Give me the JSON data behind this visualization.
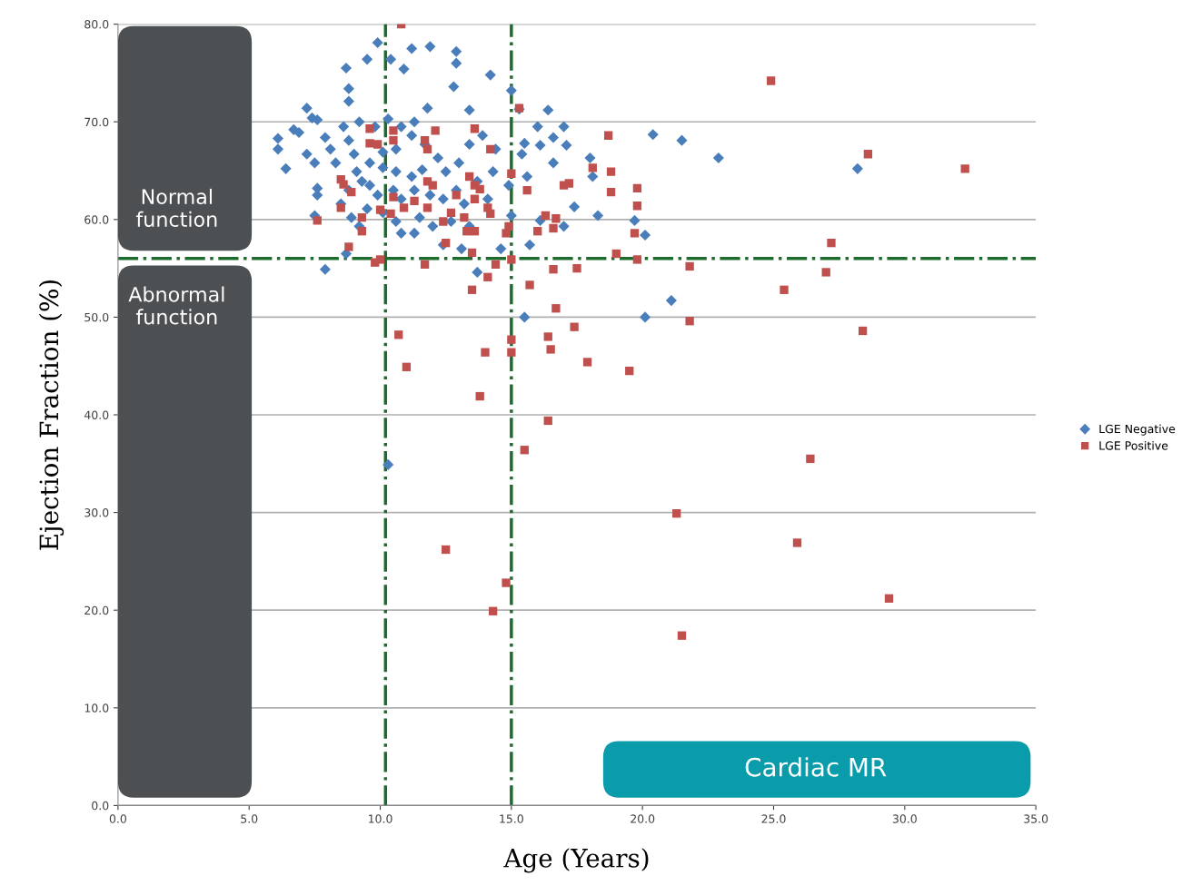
{
  "chart_data": {
    "type": "scatter",
    "xlabel": "Age (Years)",
    "ylabel": "Ejection Fraction (%)",
    "xlim": [
      0,
      35
    ],
    "ylim": [
      0,
      80
    ],
    "xticks": [
      {
        "value": 0,
        "label": "0.0"
      },
      {
        "value": 5,
        "label": "5.0"
      },
      {
        "value": 10,
        "label": "10.0"
      },
      {
        "value": 15,
        "label": "15.0"
      },
      {
        "value": 20,
        "label": "20.0"
      },
      {
        "value": 25,
        "label": "25.0"
      },
      {
        "value": 30,
        "label": "30.0"
      },
      {
        "value": 35,
        "label": "35.0"
      }
    ],
    "yticks": [
      {
        "value": 0,
        "label": "0.0"
      },
      {
        "value": 10,
        "label": "10.0"
      },
      {
        "value": 20,
        "label": "20.0"
      },
      {
        "value": 30,
        "label": "30.0"
      },
      {
        "value": 40,
        "label": "40.0"
      },
      {
        "value": 50,
        "label": "50.0"
      },
      {
        "value": 60,
        "label": "60.0"
      },
      {
        "value": 70,
        "label": "70.0"
      },
      {
        "value": 80,
        "label": "80.0"
      }
    ],
    "grid": "y",
    "legend": "right",
    "series": [
      {
        "name": "LGE Negative",
        "color": "#4a7ebb",
        "marker": "diamond",
        "x": [
          6.1,
          6.1,
          6.4,
          6.7,
          6.9,
          7.2,
          7.4,
          7.6,
          7.2,
          7.5,
          7.6,
          7.5,
          7.9,
          8.7,
          8.8,
          8.8,
          7.9,
          8.1,
          8.3,
          8.6,
          8.8,
          9.0,
          9.1,
          9.3,
          8.8,
          8.5,
          8.9,
          9.2,
          8.7,
          9.5,
          9.9,
          10.4,
          10.9,
          11.2,
          11.9,
          12.9,
          12.9,
          12.8,
          13.4,
          14.2,
          15.0,
          15.3,
          16.4,
          11.8,
          9.8,
          10.3,
          10.8,
          11.3,
          10.1,
          10.6,
          11.2,
          11.7,
          9.6,
          10.1,
          10.6,
          11.2,
          11.6,
          12.2,
          12.5,
          13.0,
          13.4,
          13.9,
          14.4,
          14.3,
          13.7,
          9.6,
          9.9,
          10.5,
          10.8,
          11.3,
          11.9,
          12.4,
          12.9,
          13.2,
          14.1,
          10.1,
          10.6,
          11.5,
          12.0,
          12.7,
          13.4,
          10.8,
          11.3,
          12.4,
          13.1,
          13.7,
          14.6,
          15.0,
          14.9,
          15.4,
          15.5,
          16.1,
          15.6,
          16.0,
          16.6,
          17.0,
          17.1,
          16.6,
          17.4,
          17.0,
          16.1,
          15.7,
          15.5,
          18.0,
          18.1,
          18.3,
          20.4,
          21.5,
          22.9,
          20.1,
          19.7,
          21.1,
          20.1,
          28.2,
          10.3,
          7.6,
          9.5,
          9.2
        ],
        "values": [
          68.3,
          67.2,
          65.2,
          69.2,
          68.9,
          71.4,
          70.4,
          70.2,
          66.7,
          65.8,
          63.2,
          60.4,
          54.9,
          75.5,
          73.4,
          72.1,
          68.4,
          67.2,
          65.8,
          69.5,
          68.1,
          66.7,
          64.9,
          63.9,
          63.0,
          61.6,
          60.2,
          59.3,
          56.5,
          76.4,
          78.1,
          76.4,
          75.4,
          77.5,
          77.7,
          77.2,
          76.0,
          73.6,
          71.2,
          74.8,
          73.2,
          71.3,
          71.2,
          71.4,
          69.5,
          70.3,
          69.5,
          70.0,
          66.9,
          67.2,
          68.6,
          67.7,
          65.8,
          65.3,
          64.9,
          64.4,
          65.1,
          66.3,
          64.9,
          65.8,
          67.7,
          68.6,
          67.2,
          64.9,
          63.9,
          63.5,
          62.5,
          63.0,
          62.1,
          63.0,
          62.5,
          62.1,
          63.0,
          61.6,
          62.1,
          60.7,
          59.8,
          60.2,
          59.3,
          59.8,
          59.3,
          58.6,
          58.6,
          57.4,
          57.0,
          54.6,
          57.0,
          60.4,
          63.5,
          66.7,
          67.8,
          67.6,
          64.4,
          69.5,
          68.4,
          69.5,
          67.6,
          65.8,
          61.3,
          59.3,
          59.9,
          57.4,
          50.0,
          66.3,
          64.4,
          60.4,
          68.7,
          68.1,
          66.3,
          58.4,
          59.9,
          51.7,
          50.0,
          65.2,
          34.9,
          62.5,
          61.1,
          70.0
        ]
      },
      {
        "name": "LGE Positive",
        "color": "#c0504d",
        "marker": "square",
        "x": [
          10.8,
          24.9,
          15.3,
          18.7,
          28.6,
          32.3,
          18.1,
          18.8,
          17.2,
          17.0,
          15.6,
          18.8,
          19.8,
          19.8,
          19.7,
          19.8,
          19.0,
          27.2,
          27.0,
          21.8,
          25.4,
          21.8,
          28.4,
          16.6,
          16.7,
          16.3,
          16.0,
          16.6,
          17.5,
          15.7,
          16.7,
          17.4,
          16.4,
          16.5,
          17.9,
          19.5,
          16.4,
          15.5,
          26.4,
          21.3,
          25.9,
          29.4,
          21.5,
          12.5,
          14.8,
          14.3,
          13.8,
          14.0,
          15.0,
          15.0,
          11.0,
          10.7,
          13.5,
          14.1,
          15.0,
          14.4,
          13.5,
          11.7,
          9.8,
          10.0,
          8.8,
          7.6,
          8.5,
          8.6,
          8.5,
          8.9,
          9.3,
          9.3,
          9.6,
          9.6,
          9.9,
          10.5,
          10.5,
          10.0,
          10.4,
          10.5,
          10.9,
          11.3,
          11.7,
          11.8,
          12.1,
          11.8,
          12.0,
          11.8,
          12.4,
          12.7,
          12.9,
          13.2,
          12.5,
          13.3,
          13.6,
          13.4,
          13.6,
          13.8,
          13.6,
          14.1,
          14.2,
          14.2,
          13.6,
          14.9,
          15.0,
          14.8
        ],
        "values": [
          80.0,
          74.2,
          71.4,
          68.6,
          66.7,
          65.2,
          65.3,
          64.9,
          63.7,
          63.5,
          63.0,
          62.8,
          63.2,
          61.4,
          58.6,
          55.9,
          56.5,
          57.6,
          54.6,
          55.2,
          52.8,
          49.6,
          48.6,
          59.1,
          60.1,
          60.4,
          58.8,
          54.9,
          55.0,
          53.3,
          50.9,
          49.0,
          48.0,
          46.7,
          45.4,
          44.5,
          39.4,
          36.4,
          35.5,
          29.9,
          26.9,
          21.2,
          17.4,
          26.2,
          22.8,
          19.9,
          41.9,
          46.4,
          46.4,
          47.7,
          44.9,
          48.2,
          52.8,
          54.1,
          55.9,
          55.4,
          56.6,
          55.4,
          55.6,
          55.9,
          57.2,
          59.9,
          61.2,
          63.6,
          64.1,
          62.8,
          58.8,
          60.2,
          69.3,
          67.8,
          67.7,
          69.1,
          68.1,
          61.0,
          60.6,
          62.3,
          61.2,
          61.9,
          68.1,
          67.2,
          69.1,
          61.2,
          63.5,
          63.9,
          59.8,
          60.7,
          62.5,
          60.2,
          57.6,
          58.8,
          58.8,
          64.4,
          63.5,
          63.1,
          62.1,
          61.2,
          60.6,
          67.2,
          69.3,
          59.3,
          64.7,
          58.6
        ]
      }
    ],
    "ref_lines": [
      {
        "axis": "x",
        "value": 10.2,
        "color": "#1e6b2e",
        "line_style": "dashdot"
      },
      {
        "axis": "x",
        "value": 15.0,
        "color": "#1e6b2e",
        "line_style": "dashdot"
      },
      {
        "axis": "y",
        "value": 56,
        "color": "#1e6b2e",
        "line_style": "dashdot"
      }
    ],
    "annotations": [
      "Normal function",
      "Abnormal function",
      "Cardiac MR"
    ]
  }
}
